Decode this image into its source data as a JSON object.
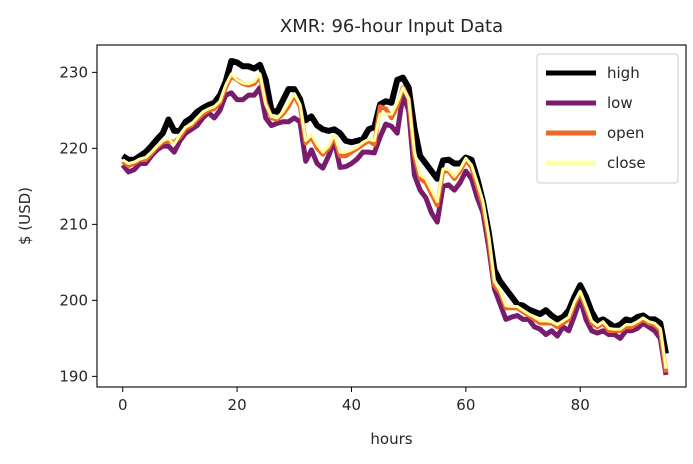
{
  "chart_data": {
    "type": "line",
    "title": "XMR: 96-hour Input Data",
    "xlabel": "hours",
    "ylabel": "$ (USD)",
    "xlim": [
      -4.5,
      98.5
    ],
    "ylim": [
      188.6,
      233.6
    ],
    "xticks": [
      0,
      20,
      40,
      60,
      80
    ],
    "yticks": [
      190,
      200,
      210,
      220,
      230
    ],
    "grid": false,
    "legend_position": "top-right",
    "series": [
      {
        "name": "high",
        "color": "#000004",
        "values": [
          219.0,
          218.5,
          218.5,
          219.0,
          219.5,
          220.3,
          221.2,
          222.0,
          223.8,
          222.3,
          222.3,
          223.5,
          224.0,
          224.8,
          225.3,
          225.7,
          226.0,
          227.0,
          228.8,
          231.5,
          231.3,
          230.8,
          230.8,
          230.5,
          231.0,
          229.0,
          225.0,
          224.8,
          226.3,
          227.8,
          227.8,
          226.5,
          223.7,
          224.2,
          223.0,
          222.5,
          222.3,
          222.5,
          222.0,
          221.0,
          220.8,
          221.0,
          221.2,
          222.5,
          222.8,
          225.8,
          226.2,
          226.0,
          229.0,
          229.3,
          228.0,
          222.7,
          219.0,
          218.0,
          217.0,
          216.0,
          218.4,
          218.5,
          218.0,
          218.0,
          218.8,
          218.5,
          216.0,
          213.0,
          209.0,
          204.0,
          202.5,
          201.5,
          200.5,
          199.5,
          199.3,
          198.8,
          198.5,
          198.2,
          198.7,
          198.0,
          197.5,
          197.8,
          198.7,
          200.5,
          202.0,
          200.5,
          198.5,
          197.2,
          197.5,
          197.0,
          196.5,
          196.8,
          197.5,
          197.3,
          197.8,
          198.0,
          197.5,
          197.5,
          197.0,
          193.0
        ]
      },
      {
        "name": "low",
        "color": "#781c6d",
        "values": [
          217.8,
          216.9,
          217.2,
          218.0,
          218.0,
          219.0,
          219.8,
          220.3,
          220.3,
          219.5,
          221.0,
          222.0,
          222.5,
          223.0,
          224.0,
          224.7,
          224.0,
          225.0,
          227.0,
          227.3,
          226.4,
          226.4,
          227.0,
          227.0,
          228.0,
          224.0,
          223.0,
          223.3,
          223.5,
          223.5,
          224.0,
          223.5,
          218.3,
          219.8,
          218.0,
          217.4,
          219.0,
          221.0,
          217.5,
          217.6,
          218.0,
          218.6,
          219.5,
          219.5,
          219.4,
          221.5,
          223.2,
          222.9,
          222.0,
          227.0,
          225.0,
          216.5,
          214.5,
          213.5,
          211.5,
          210.3,
          215.0,
          215.2,
          214.5,
          215.5,
          217.0,
          216.0,
          213.5,
          211.5,
          207.0,
          201.5,
          199.5,
          197.5,
          197.8,
          198.0,
          197.5,
          197.5,
          196.5,
          196.2,
          195.5,
          196.0,
          195.3,
          196.5,
          196.0,
          198.0,
          200.2,
          197.5,
          196.0,
          195.7,
          196.0,
          195.5,
          195.5,
          195.0,
          196.0,
          196.0,
          196.3,
          197.0,
          196.5,
          196.0,
          195.0,
          190.2
        ]
      },
      {
        "name": "open",
        "color": "#ed6925",
        "values": [
          218.3,
          217.7,
          218.0,
          218.5,
          218.5,
          219.3,
          220.2,
          220.8,
          221.0,
          220.8,
          221.5,
          222.6,
          223.0,
          223.8,
          224.5,
          225.0,
          225.2,
          226.0,
          228.0,
          229.5,
          229.0,
          228.5,
          228.3,
          228.5,
          229.5,
          226.0,
          224.0,
          223.8,
          224.5,
          225.5,
          227.0,
          225.5,
          220.7,
          221.5,
          220.0,
          219.2,
          220.0,
          221.5,
          219.0,
          219.0,
          219.5,
          220.0,
          220.5,
          221.0,
          220.5,
          225.5,
          225.2,
          224.0,
          225.5,
          228.0,
          226.5,
          219.0,
          216.0,
          215.5,
          214.0,
          212.5,
          217.0,
          217.0,
          216.0,
          217.0,
          218.5,
          217.5,
          215.0,
          212.5,
          208.0,
          202.0,
          201.0,
          199.0,
          199.0,
          199.0,
          198.5,
          198.0,
          197.5,
          197.0,
          197.0,
          197.0,
          196.5,
          197.0,
          197.5,
          199.5,
          201.0,
          199.0,
          197.0,
          196.5,
          197.0,
          196.0,
          196.0,
          196.0,
          196.5,
          196.5,
          197.0,
          197.5,
          197.0,
          196.8,
          196.0,
          190.5
        ]
      },
      {
        "name": "close",
        "color": "#fcffa4",
        "values": [
          218.5,
          218.0,
          218.2,
          218.6,
          218.8,
          219.5,
          220.3,
          221.0,
          221.3,
          220.5,
          221.8,
          222.8,
          223.2,
          224.0,
          224.8,
          225.2,
          225.5,
          226.2,
          228.3,
          229.8,
          229.0,
          228.6,
          228.5,
          228.8,
          229.8,
          225.8,
          224.2,
          224.0,
          224.8,
          226.0,
          227.2,
          225.8,
          221.0,
          221.8,
          220.5,
          219.5,
          220.3,
          221.8,
          219.5,
          219.5,
          219.8,
          220.2,
          220.8,
          221.2,
          221.0,
          224.5,
          224.5,
          224.5,
          226.0,
          228.0,
          226.5,
          219.5,
          216.5,
          216.0,
          214.5,
          213.0,
          217.3,
          217.2,
          216.3,
          217.3,
          218.7,
          217.8,
          215.5,
          213.0,
          208.5,
          202.5,
          201.3,
          199.3,
          199.2,
          199.2,
          198.7,
          198.2,
          197.8,
          197.3,
          197.3,
          197.2,
          196.8,
          197.3,
          197.8,
          199.8,
          201.2,
          199.3,
          197.3,
          196.7,
          197.2,
          196.3,
          196.2,
          196.2,
          196.8,
          196.8,
          197.2,
          197.7,
          197.2,
          197.0,
          196.3,
          191.0
        ]
      }
    ]
  }
}
